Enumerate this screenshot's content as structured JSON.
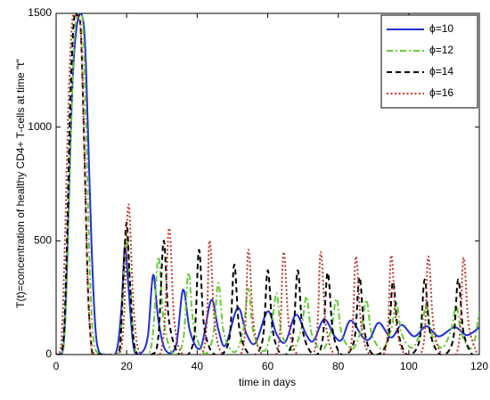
{
  "chart_data": {
    "type": "line",
    "xlabel": "time in days",
    "ylabel": "T(t)=concentration of healthy CD4+ T-cells at time \"t\"",
    "xlim": [
      0,
      120
    ],
    "xticks": [
      0,
      20,
      40,
      60,
      80,
      100,
      120
    ],
    "ylim": [
      0,
      1500
    ],
    "yticks": [
      0,
      500,
      1000,
      1500
    ],
    "legend": "upper right",
    "series": [
      {
        "name": "ϕ=10",
        "color": "#1f2fd6",
        "dash": "solid",
        "x": [
          0,
          2,
          3,
          4,
          5,
          6.5,
          8,
          9,
          10,
          11,
          12,
          14,
          17,
          18.5,
          19.5,
          20.5,
          22,
          24,
          26,
          27.5,
          29,
          31,
          34,
          36,
          38,
          41,
          44,
          46,
          48,
          51.5,
          54,
          56.5,
          60,
          62.5,
          65,
          68,
          71,
          73,
          76,
          79,
          81,
          83.5,
          87,
          89,
          91.5,
          95,
          98,
          101.5,
          105,
          108.5,
          113,
          116.5,
          120
        ],
        "values": [
          0,
          30,
          350,
          900,
          1300,
          1490,
          1420,
          1000,
          500,
          150,
          20,
          0,
          10,
          200,
          480,
          300,
          30,
          5,
          80,
          350,
          150,
          20,
          40,
          285,
          100,
          30,
          240,
          110,
          40,
          205,
          90,
          50,
          190,
          90,
          55,
          175,
          85,
          60,
          155,
          80,
          65,
          150,
          75,
          70,
          140,
          75,
          130,
          80,
          125,
          80,
          120,
          85,
          120
        ]
      },
      {
        "name": "ϕ=12",
        "color": "#66cc33",
        "dash": "dashdot",
        "x": [
          0,
          2,
          3,
          4,
          5,
          6,
          7.5,
          8.5,
          9.5,
          10.5,
          12,
          16,
          18,
          19,
          20,
          21,
          22.5,
          26,
          27.5,
          29,
          30.5,
          33,
          36,
          37.5,
          39,
          42,
          44.5,
          46,
          47.5,
          50.5,
          53,
          54.5,
          56,
          59,
          61,
          62.5,
          64,
          67,
          69.5,
          71,
          72.5,
          75.5,
          78,
          79.5,
          81,
          84,
          86.5,
          88,
          89.5,
          92.5,
          95,
          96.5,
          98,
          101,
          103.5,
          105,
          106.5,
          109.5,
          112,
          113.5,
          115,
          118,
          120
        ],
        "values": [
          0,
          20,
          300,
          850,
          1350,
          1490,
          1470,
          1000,
          400,
          80,
          5,
          0,
          20,
          300,
          540,
          300,
          20,
          0,
          100,
          430,
          150,
          5,
          60,
          360,
          130,
          5,
          80,
          315,
          100,
          10,
          100,
          290,
          90,
          15,
          110,
          270,
          90,
          20,
          110,
          255,
          90,
          20,
          110,
          245,
          90,
          25,
          110,
          240,
          90,
          25,
          110,
          230,
          90,
          30,
          110,
          220,
          90,
          30,
          110,
          215,
          90,
          30,
          190
        ]
      },
      {
        "name": "ϕ=14",
        "color": "#000000",
        "dash": "dashed",
        "x": [
          0,
          2,
          3,
          4,
          5,
          6,
          7,
          8,
          9,
          10,
          11,
          16,
          18,
          19,
          20,
          21,
          22.5,
          27,
          29,
          30.5,
          32,
          35,
          39,
          40.5,
          42,
          45,
          49,
          50.5,
          52,
          55,
          58.5,
          60,
          61.5,
          64,
          67,
          68.5,
          70,
          73,
          75.5,
          77,
          78.5,
          81,
          84.5,
          86,
          87.5,
          90,
          94,
          95.5,
          97,
          99.5,
          103,
          104.5,
          106,
          109,
          112.5,
          114,
          115.5,
          118,
          120
        ],
        "values": [
          0,
          50,
          450,
          1100,
          1460,
          1490,
          1420,
          900,
          300,
          40,
          5,
          0,
          20,
          320,
          580,
          300,
          20,
          0,
          80,
          500,
          150,
          0,
          60,
          460,
          120,
          0,
          60,
          395,
          110,
          0,
          60,
          370,
          100,
          0,
          60,
          370,
          100,
          0,
          60,
          360,
          100,
          0,
          60,
          340,
          100,
          0,
          60,
          320,
          100,
          0,
          60,
          330,
          100,
          0,
          60,
          330,
          100,
          0,
          0
        ]
      },
      {
        "name": "ϕ=16",
        "color": "#c0392b",
        "dash": "dotted",
        "x": [
          0,
          1.5,
          2.5,
          3.5,
          4.5,
          5.5,
          7,
          8,
          9,
          10,
          11,
          17,
          19,
          20.5,
          22,
          24,
          30,
          32,
          33.5,
          36,
          42,
          43.5,
          45,
          47.5,
          53,
          54.5,
          56,
          58.5,
          63,
          64.5,
          66,
          68.5,
          73.5,
          75,
          76.5,
          79,
          83.5,
          85,
          86.5,
          89,
          93.5,
          95,
          96.5,
          99,
          104,
          105.5,
          107,
          109.5,
          114,
          115.5,
          117,
          119.5,
          120
        ],
        "values": [
          0,
          60,
          500,
          1100,
          1450,
          1490,
          1420,
          900,
          300,
          30,
          0,
          0,
          100,
          660,
          200,
          0,
          30,
          555,
          150,
          0,
          30,
          500,
          130,
          0,
          30,
          460,
          130,
          0,
          30,
          450,
          130,
          0,
          30,
          450,
          130,
          0,
          30,
          430,
          130,
          0,
          30,
          435,
          130,
          0,
          30,
          430,
          130,
          0,
          30,
          425,
          130,
          0,
          0
        ]
      }
    ]
  }
}
